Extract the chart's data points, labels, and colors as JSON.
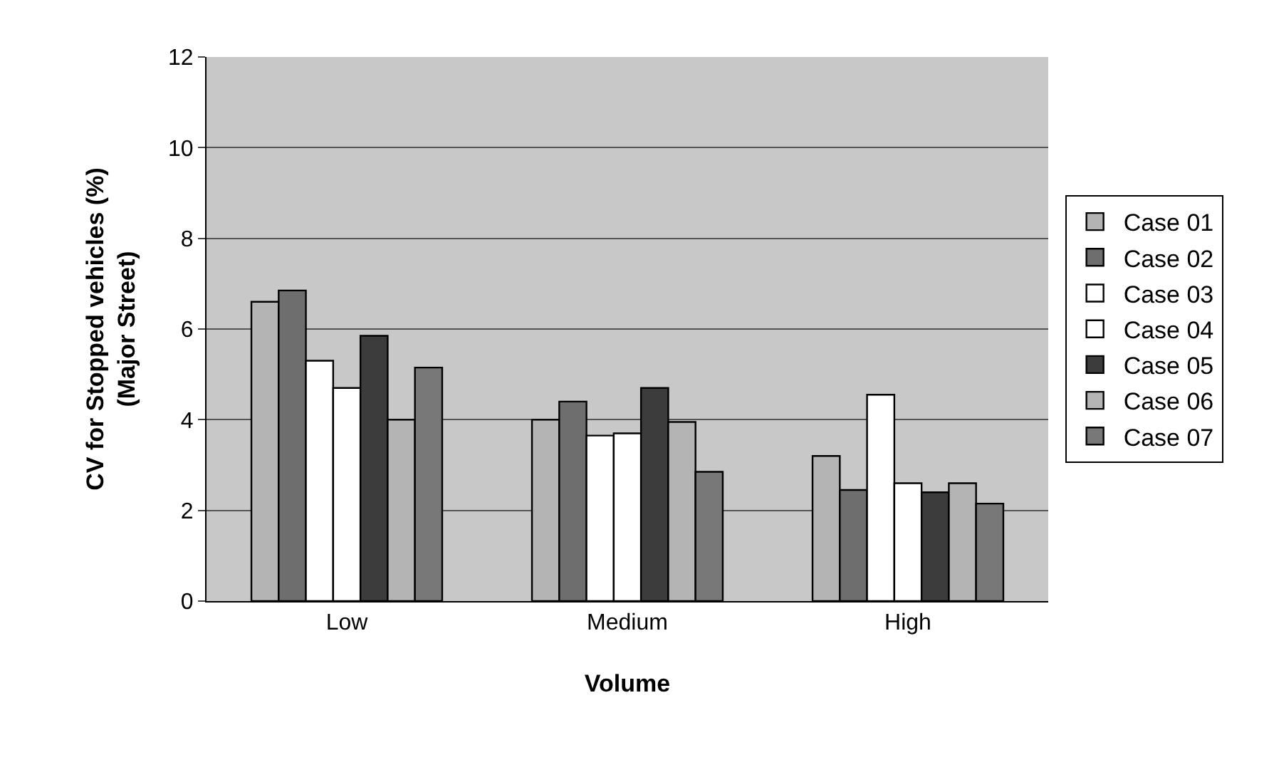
{
  "chart_data": {
    "type": "bar",
    "xlabel": "Volume",
    "ylabel": "CV for Stopped vehicles (%)\n(Major Street)",
    "categories": [
      "Low",
      "Medium",
      "High"
    ],
    "series": [
      {
        "name": "Case 01",
        "color": "#b4b4b4",
        "values": [
          6.6,
          4.0,
          3.2
        ]
      },
      {
        "name": "Case 02",
        "color": "#6e6e6e",
        "values": [
          6.85,
          4.4,
          2.45
        ]
      },
      {
        "name": "Case 03",
        "color": "#ffffff",
        "values": [
          5.3,
          3.65,
          4.55
        ]
      },
      {
        "name": "Case 04",
        "color": "#ffffff",
        "values": [
          4.7,
          3.7,
          2.6
        ]
      },
      {
        "name": "Case 05",
        "color": "#3c3c3c",
        "values": [
          5.85,
          4.7,
          2.4
        ]
      },
      {
        "name": "Case 06",
        "color": "#b4b4b4",
        "values": [
          4.0,
          3.95,
          2.6
        ]
      },
      {
        "name": "Case 07",
        "color": "#787878",
        "values": [
          5.15,
          2.85,
          2.15
        ]
      }
    ],
    "ylim": [
      0,
      12
    ],
    "yticks": [
      0,
      2,
      4,
      6,
      8,
      10,
      12
    ],
    "grid": "y",
    "legend": "right"
  }
}
